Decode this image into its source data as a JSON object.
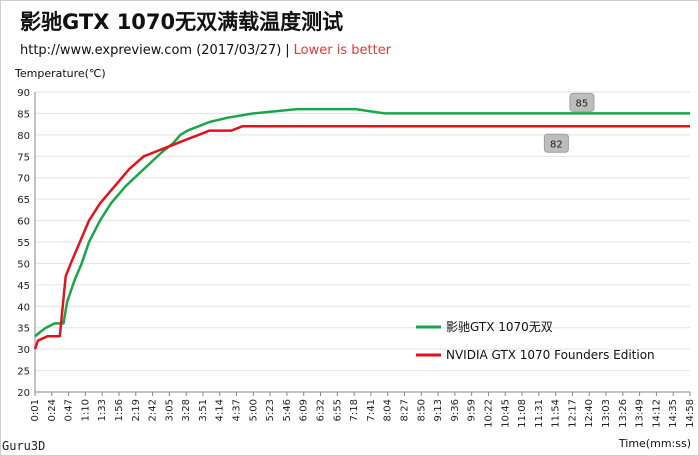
{
  "header": {
    "title": "影驰GTX 1070无双满载温度测试",
    "subtitle_url": "http://www.expreview.com (2017/03/27)",
    "subtitle_sep": "|",
    "subtitle_note": "Lower is better",
    "note_color": "#e53935"
  },
  "watermark": "Guru3D",
  "chart_data": {
    "type": "line",
    "ylabel": "Temperature(℃)",
    "xlabel": "Time(mm:ss)",
    "ylim": [
      20,
      90
    ],
    "yticks": [
      20,
      25,
      30,
      35,
      40,
      45,
      50,
      55,
      60,
      65,
      70,
      75,
      80,
      85,
      90
    ],
    "xticks": [
      "0:01",
      "0:24",
      "0:47",
      "1:10",
      "1:33",
      "1:56",
      "2:19",
      "2:42",
      "3:05",
      "3:28",
      "3:51",
      "4:14",
      "4:37",
      "5:00",
      "5:23",
      "5:46",
      "6:09",
      "6:32",
      "6:55",
      "7:18",
      "7:41",
      "8:04",
      "8:27",
      "8:50",
      "9:13",
      "9:36",
      "9:59",
      "10:22",
      "10:45",
      "11:08",
      "11:31",
      "11:54",
      "12:17",
      "12:40",
      "13:03",
      "13:26",
      "13:49",
      "14:12",
      "14:35",
      "14:58"
    ],
    "x_unit": "seconds",
    "xlim": [
      1,
      898
    ],
    "grid": true,
    "legend_position": "bottom-right",
    "series": [
      {
        "name": "影驰GTX 1070无双",
        "color": "#1aa54a",
        "points": [
          [
            1,
            33
          ],
          [
            8,
            34
          ],
          [
            16,
            35
          ],
          [
            28,
            36
          ],
          [
            40,
            36
          ],
          [
            45,
            41
          ],
          [
            55,
            46
          ],
          [
            65,
            50
          ],
          [
            75,
            55
          ],
          [
            90,
            60
          ],
          [
            105,
            64
          ],
          [
            125,
            68
          ],
          [
            150,
            72
          ],
          [
            175,
            76
          ],
          [
            190,
            78
          ],
          [
            200,
            80
          ],
          [
            210,
            81
          ],
          [
            225,
            82
          ],
          [
            240,
            83
          ],
          [
            265,
            84
          ],
          [
            300,
            85
          ],
          [
            360,
            86
          ],
          [
            440,
            86
          ],
          [
            480,
            85
          ],
          [
            898,
            85
          ]
        ]
      },
      {
        "name": "NVIDIA GTX 1070 Founders Edition",
        "color": "#e5121b",
        "points": [
          [
            1,
            30
          ],
          [
            5,
            32
          ],
          [
            18,
            33
          ],
          [
            35,
            33
          ],
          [
            43,
            47
          ],
          [
            50,
            50
          ],
          [
            60,
            54
          ],
          [
            75,
            60
          ],
          [
            90,
            64
          ],
          [
            110,
            68
          ],
          [
            130,
            72
          ],
          [
            150,
            75
          ],
          [
            165,
            76
          ],
          [
            180,
            77
          ],
          [
            195,
            78
          ],
          [
            210,
            79
          ],
          [
            225,
            80
          ],
          [
            240,
            81
          ],
          [
            270,
            81
          ],
          [
            285,
            82
          ],
          [
            898,
            82
          ]
        ]
      }
    ],
    "callouts": [
      {
        "series": 0,
        "label": "85",
        "x": 750,
        "y": 85
      },
      {
        "series": 1,
        "label": "82",
        "x": 715,
        "y": 82
      }
    ]
  }
}
